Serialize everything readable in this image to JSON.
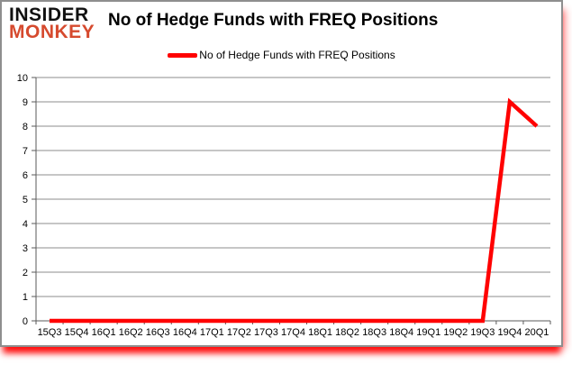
{
  "header": {
    "logo_line1": "INSIDER",
    "logo_line2": "MONKEY",
    "title": "No of Hedge Funds with FREQ Positions"
  },
  "legend": {
    "label": "No of Hedge Funds with FREQ Positions"
  },
  "colors": {
    "series": "#ff0000",
    "logo_accent": "#d64a2e",
    "gridline": "#8e8e8e",
    "axis": "#5a5a5a",
    "tick_label": "#000000",
    "frame_border": "#8e8e8e",
    "glow": "#ff0000"
  },
  "chart_data": {
    "type": "line",
    "title": "No of Hedge Funds with FREQ Positions",
    "categories": [
      "15Q3",
      "15Q4",
      "16Q1",
      "16Q2",
      "16Q3",
      "16Q4",
      "17Q1",
      "17Q2",
      "17Q3",
      "17Q4",
      "18Q1",
      "18Q2",
      "18Q3",
      "18Q4",
      "19Q1",
      "19Q2",
      "19Q3",
      "19Q4",
      "20Q1"
    ],
    "series": [
      {
        "name": "No of Hedge Funds with FREQ Positions",
        "color": "#ff0000",
        "values": [
          0,
          0,
          0,
          0,
          0,
          0,
          0,
          0,
          0,
          0,
          0,
          0,
          0,
          0,
          0,
          0,
          0,
          9,
          8
        ]
      }
    ],
    "xlabel": "",
    "ylabel": "",
    "ylim": [
      0,
      10
    ],
    "ytick_step": 1,
    "grid": true,
    "legend_position": "top"
  }
}
